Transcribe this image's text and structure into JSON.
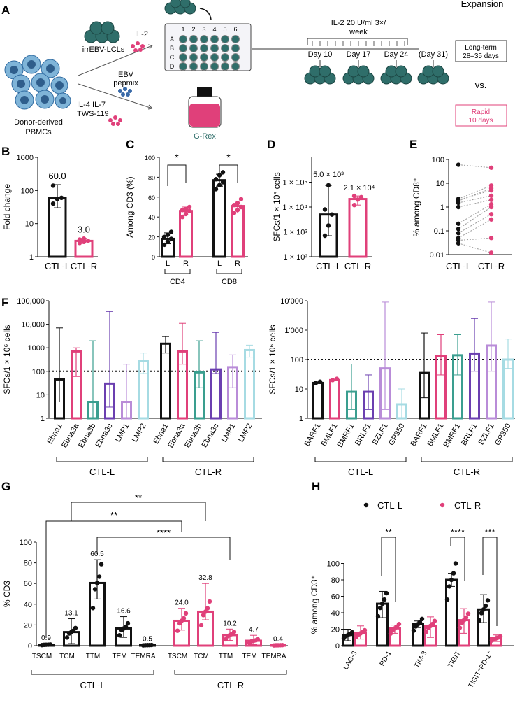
{
  "colors": {
    "black": "#111111",
    "pink": "#e0407a",
    "teal": "#3a9e8f",
    "purple": "#6b3fb0",
    "lilac": "#b98cd8",
    "cyan": "#a6dbe3",
    "blue": "#3a6aa8",
    "cell": "#2f6e6a",
    "gray": "#777777"
  },
  "panel_a": {
    "letter": "A",
    "pbmc_label": [
      "Donor-derived",
      "PBMCs"
    ],
    "lcl_label": "irrEBV-LCLs",
    "il2_label": "IL-2",
    "ebv_label": [
      "EBV",
      "pepmix"
    ],
    "cytokines_label": [
      "IL-4 IL-7",
      "TWS-119"
    ],
    "plate_rows": [
      "A",
      "B",
      "C",
      "D"
    ],
    "plate_cols": [
      "1",
      "2",
      "3",
      "4",
      "5",
      "6"
    ],
    "grex_label": "G-Rex",
    "il2_schedule": [
      "IL-2 20 U/ml 3×/",
      "week"
    ],
    "days": [
      "Day 10",
      "Day 17",
      "Day 24",
      "(Day 31)"
    ],
    "expansion_title": "Expansion",
    "long_term": [
      "Long-term",
      "28–35 days"
    ],
    "vs": "vs.",
    "rapid": [
      "Rapid",
      "10 days"
    ]
  },
  "chart_data": [
    {
      "id": "B",
      "type": "bar",
      "title": "",
      "ylabel": "Fold change",
      "yscale": "log",
      "ylim": [
        1,
        1000
      ],
      "yticks": [
        "1",
        "10",
        "100",
        "1000"
      ],
      "categories": [
        "CTL-L",
        "CTL-R"
      ],
      "values": [
        60.0,
        3.0
      ],
      "value_labels": [
        "60.0",
        "3.0"
      ],
      "errors": [
        [
          30,
          150
        ],
        [
          2.6,
          3.6
        ]
      ],
      "points": [
        [
          40,
          55,
          60,
          140
        ],
        [
          2.6,
          2.8,
          3.0,
          3.3,
          3.5
        ]
      ]
    },
    {
      "id": "C",
      "type": "bar",
      "ylabel": "Among CD3 (%)",
      "ylim": [
        0,
        100
      ],
      "yticks": [
        "0",
        "20",
        "40",
        "60",
        "80",
        "100"
      ],
      "categories": [
        "L",
        "R",
        "L",
        "R"
      ],
      "groups": [
        "CD4",
        "CD8"
      ],
      "values": [
        18,
        46,
        77,
        51
      ],
      "errors": [
        [
          13,
          24
        ],
        [
          42,
          50
        ],
        [
          71,
          83
        ],
        [
          44,
          56
        ]
      ],
      "points": [
        [
          12,
          15,
          18,
          20,
          22,
          25
        ],
        [
          40,
          43,
          46,
          47,
          48,
          50
        ],
        [
          68,
          72,
          75,
          78,
          82,
          85
        ],
        [
          44,
          47,
          50,
          52,
          54,
          58
        ]
      ],
      "significance": [
        "*",
        "*"
      ]
    },
    {
      "id": "D",
      "type": "bar",
      "ylabel": "SFCs/1 × 10⁶ cells",
      "yscale": "log",
      "ylim": [
        100,
        1000000
      ],
      "yticks": [
        "1 × 10²",
        "1 × 10³",
        "1 × 10⁴",
        "1 × 10⁵"
      ],
      "categories": [
        "CTL-L",
        "CTL-R"
      ],
      "values": [
        5000,
        21000
      ],
      "value_labels": [
        "5.0 × 10³",
        "2.1 × 10⁴"
      ],
      "errors": [
        [
          700,
          75000
        ],
        [
          12000,
          28000
        ]
      ],
      "points": [
        [
          700,
          1800,
          5000,
          8000,
          75000
        ],
        [
          12000,
          20000,
          25000,
          28000
        ]
      ]
    },
    {
      "id": "E",
      "type": "scatter",
      "ylabel": "% among CD8⁺",
      "yscale": "log",
      "ylim": [
        0.01,
        100
      ],
      "yticks": [
        "0.01",
        "0.1",
        "1",
        "10",
        "100"
      ],
      "categories": [
        "CTL-L",
        "CTL-R"
      ],
      "pairs": [
        [
          60,
          45
        ],
        [
          2.2,
          8
        ],
        [
          2.0,
          5
        ],
        [
          1.8,
          6
        ],
        [
          1.5,
          3
        ],
        [
          1.0,
          2
        ],
        [
          0.2,
          1.3
        ],
        [
          0.12,
          1.0
        ],
        [
          0.08,
          0.5
        ],
        [
          0.05,
          0.3
        ],
        [
          0.04,
          0.05
        ],
        [
          0.03,
          0.012
        ]
      ]
    },
    {
      "id": "F1",
      "type": "bar",
      "ylabel": "SFCs/1 × 10⁶ cells",
      "yscale": "log",
      "ylim": [
        1,
        100000
      ],
      "yticks": [
        "1",
        "10",
        "100",
        "1000",
        "10,000",
        "100,000"
      ],
      "categories": [
        "Ebna1",
        "Ebna3a",
        "Ebna3b",
        "Ebna3c",
        "LMP1",
        "LMP2",
        "Ebna1",
        "Ebna3a",
        "Ebna3b",
        "Ebna3c",
        "LMP1",
        "LMP2"
      ],
      "groups": [
        "CTL-L",
        "CTL-R"
      ],
      "threshold": 100,
      "values": [
        45,
        700,
        5,
        30,
        5,
        280,
        1500,
        700,
        90,
        120,
        150,
        800
      ],
      "errors": [
        [
          5,
          7000
        ],
        [
          60,
          1000
        ],
        [
          1,
          2000
        ],
        [
          3,
          35000
        ],
        [
          1,
          200
        ],
        [
          80,
          600
        ],
        [
          600,
          3000
        ],
        [
          200,
          11000
        ],
        [
          20,
          2000
        ],
        [
          80,
          4500
        ],
        [
          20,
          500
        ],
        [
          400,
          1300
        ]
      ]
    },
    {
      "id": "F2",
      "type": "bar",
      "ylabel": "SFCs/1 × 10⁶ cells",
      "yscale": "log",
      "ylim": [
        1,
        10000
      ],
      "yticks": [
        "1",
        "10",
        "100",
        "1'000",
        "10'000"
      ],
      "categories": [
        "BARF1",
        "BMLF1",
        "BMRF1",
        "BRLF1",
        "BZLF1",
        "GP350",
        "BARF1",
        "BMLF1",
        "BMRF1",
        "BRLF1",
        "BZLF1",
        "GP350"
      ],
      "groups": [
        "CTL-L",
        "CTL-R"
      ],
      "threshold": 100,
      "values": [
        16,
        20,
        8,
        8,
        50,
        3,
        35,
        130,
        140,
        160,
        300,
        100
      ],
      "errors": [
        null,
        null,
        [
          2,
          70
        ],
        [
          2,
          30
        ],
        [
          2,
          9000
        ],
        [
          1,
          10
        ],
        [
          5,
          800
        ],
        [
          30,
          700
        ],
        [
          30,
          700
        ],
        [
          40,
          2500
        ],
        [
          40,
          9000
        ],
        [
          50,
          500
        ]
      ]
    },
    {
      "id": "G",
      "type": "bar",
      "ylabel": "% CD3",
      "ylim": [
        0,
        100
      ],
      "yticks": [
        "0",
        "20",
        "40",
        "60",
        "80",
        "100"
      ],
      "categories": [
        "TSCM",
        "TCM",
        "TTM",
        "TEM",
        "TEMRA",
        "TSCM",
        "TCM",
        "TTM",
        "TEM",
        "TEMRA"
      ],
      "groups": [
        "CTL-L",
        "CTL-R"
      ],
      "values": [
        0.9,
        13.1,
        60.5,
        16.6,
        0.5,
        24.0,
        32.8,
        10.2,
        4.7,
        0.4
      ],
      "value_labels": [
        "0.9",
        "13.1",
        "60.5",
        "16.6",
        "0.5",
        "24.0",
        "32.8",
        "10.2",
        "4.7",
        "0.4"
      ],
      "errors": [
        [
          0,
          2
        ],
        [
          2,
          26
        ],
        [
          45,
          83
        ],
        [
          8,
          28
        ],
        [
          0,
          1
        ],
        [
          15,
          36
        ],
        [
          25,
          60
        ],
        [
          5,
          16
        ],
        [
          1,
          10
        ],
        [
          0,
          1
        ]
      ],
      "significance": [
        "**",
        "**",
        "****"
      ]
    },
    {
      "id": "H",
      "type": "bar",
      "ylabel": "% among CD3⁺",
      "ylim": [
        0,
        120
      ],
      "yticks": [
        "0",
        "20",
        "40",
        "60",
        "80",
        "100"
      ],
      "categories": [
        "LAG-3",
        "PD-1",
        "TIM-3",
        "TIGIT",
        "TIGIT⁺PD-1⁺"
      ],
      "series": [
        {
          "name": "CTL-L",
          "values": [
            13,
            51,
            26,
            80,
            44
          ]
        },
        {
          "name": "CTL-R",
          "values": [
            15,
            21,
            24,
            31,
            9
          ]
        }
      ],
      "errors": [
        [
          [
            6,
            20
          ],
          [
            8,
            24
          ]
        ],
        [
          [
            34,
            66
          ],
          [
            15,
            25
          ]
        ],
        [
          [
            22,
            30
          ],
          [
            10,
            35
          ]
        ],
        [
          [
            72,
            88
          ],
          [
            15,
            45
          ]
        ],
        [
          [
            28,
            62
          ],
          [
            5,
            13
          ]
        ]
      ],
      "significance": [
        "**",
        "****",
        "***"
      ]
    }
  ],
  "panel_letters": [
    "B",
    "C",
    "D",
    "E",
    "F",
    "G",
    "H"
  ]
}
